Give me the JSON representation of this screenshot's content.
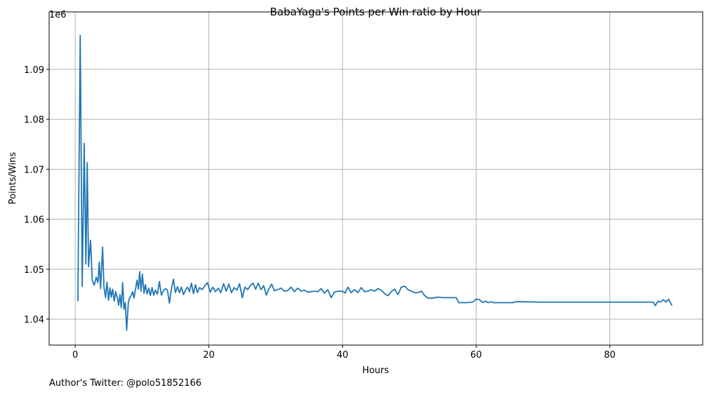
{
  "chart_data": {
    "type": "line",
    "title": "BabaYaga's Points per Win ratio by Hour",
    "xlabel": "Hours",
    "ylabel": "Points/Wins",
    "y_offset_label": "1e6",
    "footnote": "Author's Twitter: @polo51852166",
    "color": "#1f77b4",
    "grid": true,
    "xlim": [
      -3.9,
      93.9
    ],
    "xticks": [
      0,
      20,
      40,
      60,
      80
    ],
    "ylim": [
      1034800,
      1101500
    ],
    "yticks": [
      {
        "value": 1040000,
        "label": "1.04"
      },
      {
        "value": 1050000,
        "label": "1.05"
      },
      {
        "value": 1060000,
        "label": "1.06"
      },
      {
        "value": 1070000,
        "label": "1.07"
      },
      {
        "value": 1080000,
        "label": "1.08"
      },
      {
        "value": 1090000,
        "label": "1.09"
      }
    ],
    "x": [
      0.4,
      0.75,
      1.05,
      1.35,
      1.6,
      1.8,
      2.0,
      2.3,
      2.55,
      2.85,
      3.15,
      3.4,
      3.6,
      3.8,
      4.1,
      4.3,
      4.55,
      4.75,
      5.0,
      5.2,
      5.4,
      5.6,
      5.85,
      6.05,
      6.3,
      6.5,
      6.7,
      6.9,
      7.1,
      7.3,
      7.5,
      7.7,
      7.95,
      8.15,
      8.35,
      8.6,
      8.8,
      9.0,
      9.25,
      9.45,
      9.65,
      9.85,
      10.05,
      10.3,
      10.5,
      10.75,
      11.0,
      11.25,
      11.5,
      11.75,
      12.0,
      12.3,
      12.6,
      12.9,
      13.2,
      13.5,
      13.8,
      14.1,
      14.4,
      14.7,
      15.0,
      15.3,
      15.6,
      15.9,
      16.2,
      16.5,
      16.8,
      17.1,
      17.4,
      17.7,
      18.0,
      18.3,
      18.6,
      19.0,
      19.4,
      19.8,
      20.2,
      20.6,
      21.0,
      21.4,
      21.8,
      22.2,
      22.6,
      23.0,
      23.4,
      23.8,
      24.2,
      24.6,
      25.0,
      25.4,
      25.8,
      26.2,
      26.6,
      27.0,
      27.4,
      27.8,
      28.2,
      28.6,
      29.0,
      29.4,
      29.8,
      30.3,
      30.8,
      31.3,
      31.8,
      32.3,
      32.8,
      33.3,
      33.8,
      34.3,
      34.8,
      35.3,
      35.8,
      36.3,
      36.8,
      37.3,
      37.8,
      38.3,
      38.8,
      39.3,
      40.0,
      40.4,
      40.8,
      41.3,
      41.8,
      42.3,
      42.8,
      43.3,
      43.8,
      44.3,
      44.8,
      45.3,
      45.8,
      46.3,
      46.8,
      47.3,
      47.8,
      48.3,
      48.8,
      49.3,
      49.8,
      50.3,
      50.8,
      51.3,
      51.8,
      52.3,
      52.8,
      53.5,
      54.2,
      55.0,
      56.0,
      57.0,
      57.4,
      58.5,
      59.5,
      60.0,
      60.5,
      61.0,
      61.4,
      61.8,
      62.2,
      62.6,
      64.0,
      65.5,
      66.0,
      70.0,
      75.0,
      80.0,
      86.5,
      86.8,
      87.2,
      87.6,
      88.0,
      88.4,
      88.8,
      89.3
    ],
    "values": [
      1043600,
      1096800,
      1046500,
      1075200,
      1051000,
      1071300,
      1050500,
      1055800,
      1047800,
      1046800,
      1048400,
      1047300,
      1051400,
      1046100,
      1054400,
      1046400,
      1044300,
      1047400,
      1043800,
      1046300,
      1044400,
      1046000,
      1043600,
      1045500,
      1044300,
      1042800,
      1044900,
      1042300,
      1047300,
      1042000,
      1043300,
      1037800,
      1043300,
      1044300,
      1044600,
      1045500,
      1044200,
      1045800,
      1047800,
      1046000,
      1049500,
      1045600,
      1049000,
      1045200,
      1046900,
      1045000,
      1046200,
      1044700,
      1046300,
      1044800,
      1045800,
      1045000,
      1047500,
      1044800,
      1045700,
      1046100,
      1045800,
      1043200,
      1046100,
      1048000,
      1045300,
      1046500,
      1045300,
      1046400,
      1044900,
      1045800,
      1046400,
      1045500,
      1047200,
      1045100,
      1046900,
      1045300,
      1046300,
      1045900,
      1046700,
      1047300,
      1045400,
      1046400,
      1045500,
      1046200,
      1045300,
      1047100,
      1045600,
      1047000,
      1045300,
      1046300,
      1045800,
      1047100,
      1044300,
      1046400,
      1045900,
      1046700,
      1047200,
      1046000,
      1047200,
      1045900,
      1046700,
      1044800,
      1046100,
      1047000,
      1045700,
      1045900,
      1046200,
      1045600,
      1045700,
      1046400,
      1045500,
      1046200,
      1045600,
      1045800,
      1045400,
      1045500,
      1045600,
      1045500,
      1046100,
      1045200,
      1045900,
      1044300,
      1045400,
      1045600,
      1045600,
      1045200,
      1046400,
      1045300,
      1045900,
      1045300,
      1046300,
      1045500,
      1045600,
      1045900,
      1045600,
      1046100,
      1045800,
      1045100,
      1044700,
      1045500,
      1046000,
      1044900,
      1046400,
      1046600,
      1045900,
      1045600,
      1045300,
      1045300,
      1045600,
      1044700,
      1044200,
      1044200,
      1044400,
      1044300,
      1044300,
      1044300,
      1043300,
      1043300,
      1043400,
      1044000,
      1043900,
      1043300,
      1043600,
      1043300,
      1043500,
      1043300,
      1043300,
      1043300,
      1043500,
      1043400,
      1043400,
      1043400,
      1043400,
      1042700,
      1043600,
      1043400,
      1043900,
      1043400,
      1044000,
      1042700
    ]
  }
}
